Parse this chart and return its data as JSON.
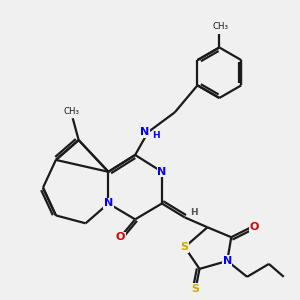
{
  "bg_color": "#f0f0f0",
  "bond_color": "#1a1a1a",
  "bond_width": 1.6,
  "atom_colors": {
    "N": "#0000ee",
    "NH": "#0000ee",
    "O": "#dd0000",
    "S": "#ccaa00",
    "C": "#1a1a1a"
  },
  "figsize": [
    3.0,
    3.0
  ],
  "dpi": 100,
  "xlim": [
    0,
    10
  ],
  "ylim": [
    0,
    10
  ]
}
